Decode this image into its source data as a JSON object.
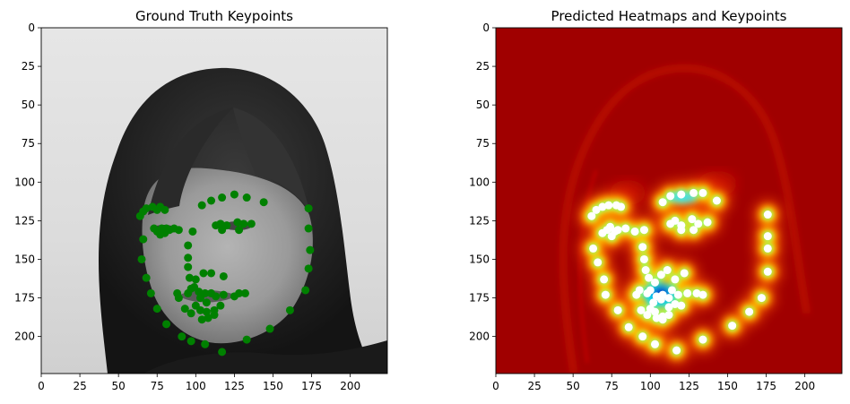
{
  "chart_data": [
    {
      "type": "scatter",
      "title": "Ground Truth Keypoints",
      "xlim": [
        0,
        224
      ],
      "ylim": [
        224,
        0
      ],
      "xticks": [
        0,
        25,
        50,
        75,
        100,
        125,
        150,
        175,
        200
      ],
      "yticks": [
        0,
        25,
        50,
        75,
        100,
        125,
        150,
        175,
        200
      ],
      "background": "grayscale face photo",
      "point_color": "#008000",
      "points": [
        [
          64,
          122
        ],
        [
          66,
          119
        ],
        [
          68,
          117
        ],
        [
          72,
          116
        ],
        [
          77,
          116
        ],
        [
          80,
          118
        ],
        [
          75,
          118
        ],
        [
          66,
          137
        ],
        [
          65,
          150
        ],
        [
          68,
          162
        ],
        [
          71,
          172
        ],
        [
          75,
          182
        ],
        [
          81,
          192
        ],
        [
          91,
          200
        ],
        [
          97,
          203
        ],
        [
          106,
          205
        ],
        [
          117,
          210
        ],
        [
          133,
          202
        ],
        [
          148,
          195
        ],
        [
          161,
          183
        ],
        [
          171,
          170
        ],
        [
          173,
          156
        ],
        [
          174,
          144
        ],
        [
          173,
          130
        ],
        [
          173,
          117
        ],
        [
          73,
          130
        ],
        [
          75,
          132
        ],
        [
          77,
          134
        ],
        [
          80,
          133
        ],
        [
          83,
          131
        ],
        [
          86,
          130
        ],
        [
          89,
          131
        ],
        [
          81,
          130
        ],
        [
          78,
          130
        ],
        [
          98,
          132
        ],
        [
          95,
          141
        ],
        [
          95,
          149
        ],
        [
          95,
          155
        ],
        [
          96,
          162
        ],
        [
          100,
          163
        ],
        [
          99,
          168
        ],
        [
          105,
          159
        ],
        [
          110,
          159
        ],
        [
          118,
          161
        ],
        [
          104,
          115
        ],
        [
          110,
          112
        ],
        [
          117,
          110
        ],
        [
          125,
          108
        ],
        [
          133,
          110
        ],
        [
          144,
          113
        ],
        [
          113,
          128
        ],
        [
          116,
          127
        ],
        [
          120,
          128
        ],
        [
          117,
          131
        ],
        [
          127,
          126
        ],
        [
          131,
          127
        ],
        [
          136,
          127
        ],
        [
          128,
          131
        ],
        [
          88,
          172
        ],
        [
          89,
          175
        ],
        [
          95,
          172
        ],
        [
          97,
          169
        ],
        [
          102,
          171
        ],
        [
          106,
          172
        ],
        [
          110,
          172
        ],
        [
          103,
          175
        ],
        [
          107,
          178
        ],
        [
          113,
          174
        ],
        [
          118,
          173
        ],
        [
          125,
          174
        ],
        [
          128,
          172
        ],
        [
          132,
          172
        ],
        [
          93,
          182
        ],
        [
          97,
          185
        ],
        [
          103,
          183
        ],
        [
          107,
          184
        ],
        [
          112,
          183
        ],
        [
          116,
          180
        ],
        [
          104,
          189
        ],
        [
          108,
          188
        ],
        [
          100,
          180
        ],
        [
          112,
          186
        ]
      ]
    },
    {
      "type": "heatmap",
      "title": "Predicted Heatmaps and Keypoints",
      "xlim": [
        0,
        224
      ],
      "ylim": [
        224,
        0
      ],
      "xticks": [
        0,
        25,
        50,
        75,
        100,
        125,
        150,
        175,
        200
      ],
      "yticks": [
        0,
        25,
        50,
        75,
        100,
        125,
        150,
        175,
        200
      ],
      "colormap": "jet",
      "point_color": "#ffffff",
      "points": [
        [
          62,
          122
        ],
        [
          65,
          118
        ],
        [
          69,
          116
        ],
        [
          73,
          115
        ],
        [
          78,
          115
        ],
        [
          81,
          116
        ],
        [
          63,
          143
        ],
        [
          66,
          152
        ],
        [
          70,
          163
        ],
        [
          71,
          173
        ],
        [
          79,
          183
        ],
        [
          86,
          194
        ],
        [
          95,
          200
        ],
        [
          103,
          205
        ],
        [
          117,
          209
        ],
        [
          134,
          202
        ],
        [
          153,
          193
        ],
        [
          164,
          184
        ],
        [
          172,
          175
        ],
        [
          176,
          158
        ],
        [
          176,
          143
        ],
        [
          176,
          135
        ],
        [
          176,
          121
        ],
        [
          69,
          133
        ],
        [
          72,
          131
        ],
        [
          74,
          129
        ],
        [
          77,
          132
        ],
        [
          79,
          131
        ],
        [
          84,
          130
        ],
        [
          90,
          132
        ],
        [
          96,
          131
        ],
        [
          75,
          135
        ],
        [
          95,
          142
        ],
        [
          96,
          150
        ],
        [
          97,
          157
        ],
        [
          99,
          162
        ],
        [
          103,
          165
        ],
        [
          107,
          160
        ],
        [
          111,
          157
        ],
        [
          116,
          163
        ],
        [
          122,
          159
        ],
        [
          108,
          113
        ],
        [
          113,
          109
        ],
        [
          120,
          108
        ],
        [
          128,
          107
        ],
        [
          134,
          107
        ],
        [
          143,
          112
        ],
        [
          113,
          127
        ],
        [
          116,
          125
        ],
        [
          120,
          128
        ],
        [
          120,
          131
        ],
        [
          127,
          124
        ],
        [
          131,
          127
        ],
        [
          137,
          126
        ],
        [
          128,
          131
        ],
        [
          91,
          173
        ],
        [
          93,
          170
        ],
        [
          98,
          172
        ],
        [
          100,
          170
        ],
        [
          104,
          174
        ],
        [
          108,
          173
        ],
        [
          112,
          175
        ],
        [
          102,
          178
        ],
        [
          107,
          176
        ],
        [
          114,
          170
        ],
        [
          118,
          173
        ],
        [
          124,
          172
        ],
        [
          130,
          172
        ],
        [
          134,
          173
        ],
        [
          94,
          183
        ],
        [
          98,
          186
        ],
        [
          103,
          184
        ],
        [
          108,
          187
        ],
        [
          112,
          181
        ],
        [
          116,
          179
        ],
        [
          104,
          188
        ],
        [
          108,
          189
        ],
        [
          100,
          182
        ],
        [
          112,
          186
        ],
        [
          120,
          180
        ]
      ]
    }
  ]
}
